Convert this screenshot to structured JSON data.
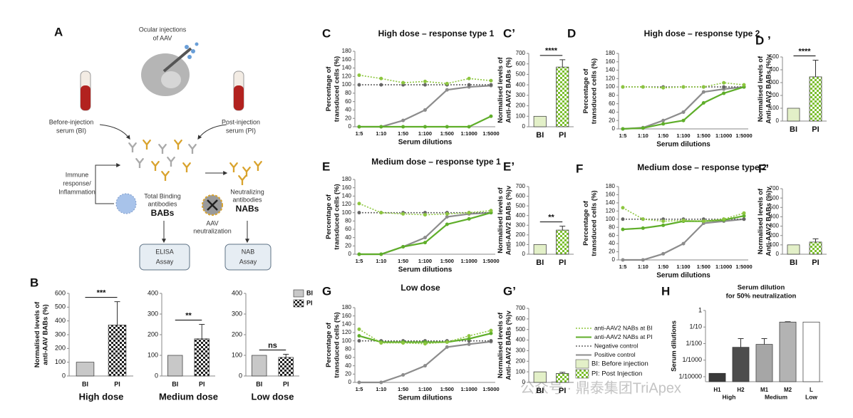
{
  "diagram": {
    "panel": "A",
    "injection": [
      "Ocular injections",
      "of AAV"
    ],
    "bi_serum": [
      "Before-injection",
      "serum (BI)"
    ],
    "pi_serum": [
      "Post-injection",
      "serum (PI)"
    ],
    "immune": [
      "Immune",
      "response/",
      "Inflammation"
    ],
    "babs_desc": [
      "Total Binding",
      "antibodies"
    ],
    "babs": "BABs",
    "nabs_desc": [
      "Neutralizing",
      "antibodies"
    ],
    "nabs": "NABs",
    "neutralization": [
      "AAV",
      "neutralization"
    ],
    "elisa": [
      "ELISA",
      "Assay"
    ],
    "nab_assay": [
      "NAB",
      "Assay"
    ]
  },
  "watermark": "公众号 · 鼎泰集团TriApex",
  "chart_data": [
    {
      "type": "bar",
      "panel": "B",
      "ylabel": [
        "Normalised levels of",
        "anti-AAV BABs (%)"
      ],
      "xlabel": "High dose",
      "categories": [
        "BI",
        "PI"
      ],
      "values": [
        100,
        370
      ],
      "errors": [
        null,
        170
      ],
      "colors": [
        "#c8c8c8",
        "#222222"
      ],
      "pattern": [
        false,
        true
      ],
      "ylim": [
        0,
        600
      ],
      "yticks": [
        0,
        100,
        200,
        300,
        400,
        500,
        600
      ],
      "significance": "***"
    },
    {
      "type": "bar",
      "xlabel": "Medium dose",
      "categories": [
        "BI",
        "PI"
      ],
      "values": [
        100,
        180
      ],
      "errors": [
        null,
        70
      ],
      "colors": [
        "#c8c8c8",
        "#222222"
      ],
      "pattern": [
        false,
        true
      ],
      "ylim": [
        0,
        400
      ],
      "yticks": [
        0,
        100,
        200,
        300,
        400
      ],
      "significance": "**"
    },
    {
      "type": "bar",
      "xlabel": "Low dose",
      "categories": [
        "BI",
        "PI"
      ],
      "values": [
        100,
        90
      ],
      "errors": [
        null,
        15
      ],
      "colors": [
        "#c8c8c8",
        "#222222"
      ],
      "pattern": [
        false,
        true
      ],
      "ylim": [
        0,
        400
      ],
      "yticks": [
        0,
        100,
        200,
        300,
        400
      ],
      "significance": "ns"
    },
    {
      "type": "line",
      "panel": "C",
      "title": "High dose – response type 1",
      "ylabel": [
        "Percentage of",
        "transduced cells (%)"
      ],
      "xlabel": "Serum dilutions",
      "categories": [
        "1:5",
        "1:10",
        "1:50",
        "1:100",
        "1:500",
        "1:1000",
        "1:5000"
      ],
      "ylim": [
        0,
        180
      ],
      "yticks": [
        0,
        20,
        40,
        60,
        80,
        100,
        120,
        140,
        160,
        180
      ],
      "series": [
        {
          "name": "anti-AAV2 NABs at BI",
          "color": "#8dc63f",
          "style": "dotted",
          "values": [
            123,
            115,
            105,
            108,
            103,
            115,
            110
          ]
        },
        {
          "name": "anti-AAV2 NABs at PI",
          "color": "#5fae2a",
          "style": "solid",
          "values": [
            0,
            0,
            0,
            0,
            0,
            0,
            25
          ]
        },
        {
          "name": "Negative control",
          "color": "#666666",
          "style": "dotted",
          "values": [
            100,
            100,
            100,
            100,
            100,
            100,
            100
          ]
        },
        {
          "name": "Positive control",
          "color": "#8c8c8c",
          "style": "solid",
          "values": [
            0,
            0,
            15,
            40,
            88,
            95,
            98
          ]
        }
      ]
    },
    {
      "type": "bar",
      "panel": "C’",
      "ylabel": [
        "Normalised levels of",
        "Anti-AAV2 BABs (%)"
      ],
      "categories": [
        "BI",
        "PI"
      ],
      "values": [
        100,
        570
      ],
      "errors": [
        null,
        70
      ],
      "colors": [
        "#e3f0c8",
        "#7cbf2e"
      ],
      "pattern": [
        false,
        true
      ],
      "ylim": [
        0,
        700
      ],
      "yticks": [
        0,
        100,
        200,
        300,
        400,
        500,
        600,
        700
      ],
      "significance": "****"
    },
    {
      "type": "line",
      "panel": "D",
      "title": "High dose – response type 2",
      "ylabel": [
        "Percentage of",
        "transduced cells (%)"
      ],
      "xlabel": "Serum dilutions",
      "categories": [
        "1:5",
        "1:10",
        "1:50",
        "1:100",
        "1:500",
        "1:1000",
        "1:5000"
      ],
      "ylim": [
        0,
        180
      ],
      "yticks": [
        0,
        20,
        40,
        60,
        80,
        100,
        120,
        140,
        160,
        180
      ],
      "series": [
        {
          "name": "anti-AAV2 NABs at BI",
          "color": "#8dc63f",
          "style": "dotted",
          "values": [
            100,
            100,
            98,
            100,
            100,
            110,
            105
          ]
        },
        {
          "name": "anti-AAV2 NABs at PI",
          "color": "#5fae2a",
          "style": "solid",
          "values": [
            0,
            2,
            12,
            20,
            62,
            85,
            100
          ]
        },
        {
          "name": "Negative control",
          "color": "#666666",
          "style": "dotted",
          "values": [
            100,
            100,
            100,
            100,
            100,
            100,
            100
          ]
        },
        {
          "name": "Positive control",
          "color": "#8c8c8c",
          "style": "solid",
          "values": [
            0,
            3,
            20,
            40,
            88,
            95,
            100
          ]
        }
      ]
    },
    {
      "type": "bar",
      "panel": "D ’",
      "ylabel": [
        "Normalised levels of",
        "Anti-AAV2 BABs (%)v"
      ],
      "categories": [
        "BI",
        "PI"
      ],
      "values": [
        100,
        345
      ],
      "errors": [
        null,
        130
      ],
      "colors": [
        "#e3f0c8",
        "#7cbf2e"
      ],
      "pattern": [
        false,
        true
      ],
      "ylim": [
        0,
        500
      ],
      "yticks": [
        0,
        100,
        200,
        300,
        400,
        500
      ],
      "significance": "****"
    },
    {
      "type": "line",
      "panel": "E",
      "title": "Medium dose – response type 1",
      "ylabel": [
        "Percentage of",
        "transduced cells (%)"
      ],
      "xlabel": "Serum dilutions",
      "categories": [
        "1:5",
        "1:10",
        "1:50",
        "1:100",
        "1:500",
        "1:1000",
        "1:5000"
      ],
      "ylim": [
        0,
        180
      ],
      "yticks": [
        0,
        20,
        40,
        60,
        80,
        100,
        120,
        140,
        160,
        180
      ],
      "series": [
        {
          "name": "anti-AAV2 NABs at BI",
          "color": "#8dc63f",
          "style": "dotted",
          "values": [
            122,
            100,
            97,
            95,
            97,
            100,
            105
          ]
        },
        {
          "name": "anti-AAV2 NABs at PI",
          "color": "#5fae2a",
          "style": "solid",
          "values": [
            0,
            0,
            18,
            28,
            72,
            85,
            100
          ]
        },
        {
          "name": "Negative control",
          "color": "#666666",
          "style": "dotted",
          "values": [
            100,
            100,
            100,
            100,
            100,
            100,
            100
          ]
        },
        {
          "name": "Positive control",
          "color": "#8c8c8c",
          "style": "solid",
          "values": [
            0,
            0,
            18,
            40,
            90,
            97,
            100
          ]
        }
      ]
    },
    {
      "type": "bar",
      "panel": "E’",
      "ylabel": [
        "Normalised levels of",
        "Anti-AAV2 BABs (%)v"
      ],
      "categories": [
        "BI",
        "PI"
      ],
      "values": [
        100,
        250
      ],
      "errors": [
        null,
        40
      ],
      "colors": [
        "#e3f0c8",
        "#7cbf2e"
      ],
      "pattern": [
        false,
        true
      ],
      "ylim": [
        0,
        700
      ],
      "yticks": [
        0,
        100,
        200,
        300,
        400,
        500,
        600,
        700
      ],
      "significance": "**"
    },
    {
      "type": "line",
      "panel": "F",
      "title": "Medium dose – response type 2",
      "ylabel": [
        "Percentage of",
        "transduced cells (%)"
      ],
      "xlabel": "Serum dilutions",
      "categories": [
        "1:5",
        "1:10",
        "1:50",
        "1:100",
        "1:500",
        "1:1000",
        "1:5000"
      ],
      "ylim": [
        0,
        180
      ],
      "yticks": [
        0,
        20,
        40,
        60,
        80,
        100,
        120,
        140,
        160,
        180
      ],
      "series": [
        {
          "name": "anti-AAV2 NABs at BI",
          "color": "#8dc63f",
          "style": "dotted",
          "values": [
            128,
            100,
            95,
            97,
            95,
            100,
            115
          ]
        },
        {
          "name": "anti-AAV2 NABs at PI",
          "color": "#5fae2a",
          "style": "solid",
          "values": [
            75,
            78,
            85,
            95,
            95,
            98,
            108
          ]
        },
        {
          "name": "Negative control",
          "color": "#666666",
          "style": "dotted",
          "values": [
            100,
            100,
            100,
            100,
            100,
            100,
            100
          ]
        },
        {
          "name": "Positive control",
          "color": "#8c8c8c",
          "style": "solid",
          "values": [
            0,
            0,
            15,
            40,
            90,
            95,
            100
          ]
        }
      ]
    },
    {
      "type": "bar",
      "panel": "F’",
      "ylabel": [
        "Normalised levels of",
        "Anti-AAV2 BABs (%)v"
      ],
      "categories": [
        "BI",
        "PI"
      ],
      "values": [
        100,
        130
      ],
      "errors": [
        null,
        35
      ],
      "colors": [
        "#e3f0c8",
        "#7cbf2e"
      ],
      "pattern": [
        false,
        true
      ],
      "ylim": [
        0,
        700
      ],
      "yticks": [
        0,
        100,
        200,
        300,
        400,
        500,
        600,
        700
      ]
    },
    {
      "type": "line",
      "panel": "G",
      "title": "Low dose",
      "ylabel": [
        "Percentage of",
        "transduced cells (%)"
      ],
      "xlabel": "Serum dilutions",
      "categories": [
        "1:5",
        "1:10",
        "1:50",
        "1:100",
        "1:500",
        "1:1000",
        "1:5000"
      ],
      "ylim": [
        0,
        180
      ],
      "yticks": [
        0,
        20,
        40,
        60,
        80,
        100,
        120,
        140,
        160,
        180
      ],
      "series": [
        {
          "name": "anti-AAV2 NABs at BI",
          "color": "#8dc63f",
          "style": "dotted",
          "values": [
            128,
            95,
            95,
            93,
            97,
            112,
            125
          ]
        },
        {
          "name": "anti-AAV2 NABs at PI",
          "color": "#5fae2a",
          "style": "solid",
          "values": [
            112,
            97,
            97,
            97,
            97,
            105,
            118
          ]
        },
        {
          "name": "Negative control",
          "color": "#666666",
          "style": "dotted",
          "values": [
            100,
            100,
            100,
            100,
            100,
            100,
            100
          ]
        },
        {
          "name": "Positive control",
          "color": "#8c8c8c",
          "style": "solid",
          "values": [
            0,
            0,
            18,
            40,
            85,
            92,
            98
          ]
        }
      ]
    },
    {
      "type": "bar",
      "panel": "G’",
      "ylabel": [
        "Normalised levels of",
        "Anti-AAV2 BABs (%)v"
      ],
      "categories": [
        "BI",
        "PI"
      ],
      "values": [
        100,
        85
      ],
      "errors": [
        null,
        10
      ],
      "colors": [
        "#e3f0c8",
        "#7cbf2e"
      ],
      "pattern": [
        false,
        true
      ],
      "ylim": [
        0,
        700
      ],
      "yticks": [
        0,
        100,
        200,
        300,
        400,
        500,
        600,
        700
      ],
      "legend_labels": [
        "BI: Before injection",
        "PI: Post Injection"
      ]
    },
    {
      "type": "bar",
      "panel": "H",
      "log": true,
      "title": [
        "Serum dilution",
        "for 50% neutralization"
      ],
      "ylabel": "Serum dilutions",
      "categories": [
        "H1",
        "H2",
        "M1",
        "M2",
        "L"
      ],
      "groups": [
        "High",
        "Medium",
        "Low"
      ],
      "values": [
        0.00016,
        0.006,
        0.009,
        0.2,
        0.2
      ],
      "errors": [
        null,
        0.014,
        0.011,
        0.01,
        null
      ],
      "colors": [
        "#3a3a3a",
        "#4d4d4d",
        "#a6a6a6",
        "#b3b3b3",
        "#ffffff"
      ],
      "pattern": [
        false,
        false,
        false,
        false,
        false
      ],
      "ylim": [
        5e-05,
        1
      ],
      "yticks": [
        {
          "value": 0.0001,
          "label": "1/10000"
        },
        {
          "value": 0.001,
          "label": "1/1000"
        },
        {
          "value": 0.01,
          "label": "1/100"
        },
        {
          "value": 0.1,
          "label": "1/10"
        },
        1
      ]
    }
  ]
}
